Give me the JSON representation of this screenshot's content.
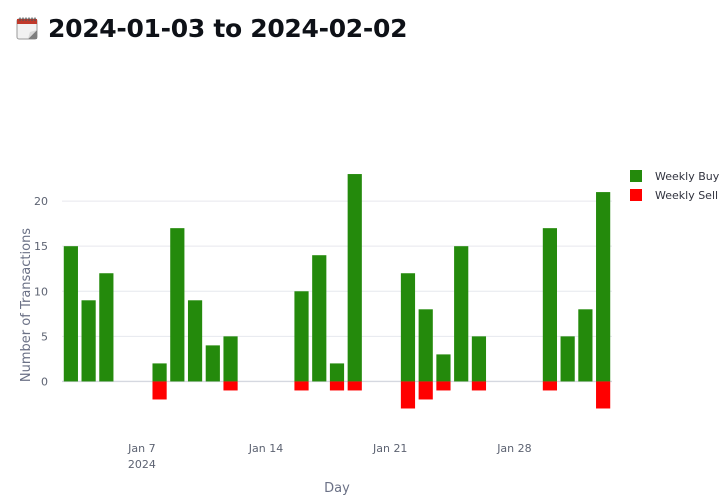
{
  "header": {
    "icon": "calendar-icon",
    "title": "2024-01-03 to 2024-02-02"
  },
  "colors": {
    "buy": "#248a0c",
    "sell": "#ff0000",
    "grid": "#e6e8ee",
    "zero": "#d5d8e0"
  },
  "chart_data": {
    "type": "bar",
    "barmode": "relative",
    "xlabel": "Day",
    "ylabel": "Number of Transactions",
    "ylim": [
      -3.5,
      26
    ],
    "xlim": [
      "2024-01-03",
      "2024-02-02"
    ],
    "yticks": [
      0,
      5,
      10,
      15,
      20
    ],
    "xticks": [
      {
        "date": "2024-01-07",
        "label": "Jan 7",
        "sublabel": "2024"
      },
      {
        "date": "2024-01-14",
        "label": "Jan 14",
        "sublabel": ""
      },
      {
        "date": "2024-01-21",
        "label": "Jan 21",
        "sublabel": ""
      },
      {
        "date": "2024-01-28",
        "label": "Jan 28",
        "sublabel": ""
      }
    ],
    "grid": true,
    "legend_position": "top-right",
    "series": [
      {
        "name": "Weekly Buy",
        "color": "#248a0c",
        "x": [
          "2024-01-03",
          "2024-01-04",
          "2024-01-05",
          "2024-01-08",
          "2024-01-09",
          "2024-01-10",
          "2024-01-11",
          "2024-01-12",
          "2024-01-16",
          "2024-01-17",
          "2024-01-18",
          "2024-01-19",
          "2024-01-22",
          "2024-01-23",
          "2024-01-24",
          "2024-01-25",
          "2024-01-26",
          "2024-01-30",
          "2024-01-31",
          "2024-02-01",
          "2024-02-02"
        ],
        "values": [
          15,
          9,
          12,
          2,
          17,
          9,
          4,
          5,
          10,
          14,
          2,
          23,
          12,
          8,
          3,
          15,
          5,
          17,
          5,
          8,
          21
        ]
      },
      {
        "name": "Weekly Sell",
        "color": "#ff0000",
        "x": [
          "2024-01-08",
          "2024-01-12",
          "2024-01-16",
          "2024-01-18",
          "2024-01-19",
          "2024-01-22",
          "2024-01-23",
          "2024-01-24",
          "2024-01-26",
          "2024-01-30",
          "2024-02-02"
        ],
        "values": [
          -2,
          -1,
          -1,
          -1,
          -1,
          -3,
          -2,
          -1,
          -1,
          -1,
          -3
        ]
      }
    ]
  }
}
